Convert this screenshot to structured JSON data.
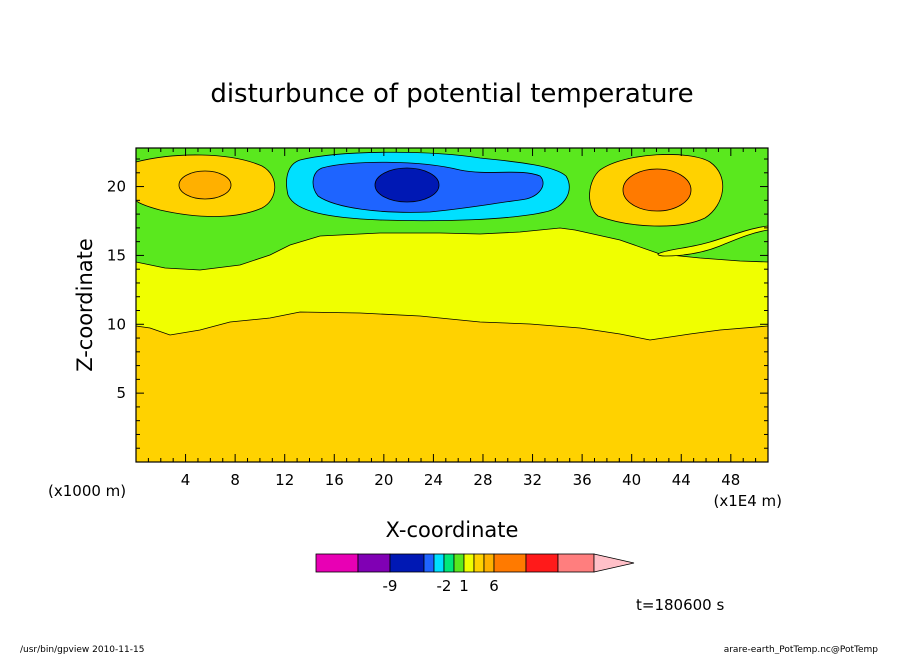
{
  "chart_data": {
    "type": "heatmap",
    "title": "disturbunce of potential temperature",
    "xlabel": "X-coordinate",
    "ylabel": "Z-coordinate",
    "x_unit_left": "(x1000 m)",
    "x_unit_right": "(x1E4 m)",
    "xlim": [
      0,
      51
    ],
    "ylim": [
      0,
      22.8
    ],
    "xticks": [
      4,
      8,
      12,
      16,
      20,
      24,
      28,
      32,
      36,
      40,
      44,
      48
    ],
    "yticks": [
      5,
      10,
      15,
      20
    ],
    "colorbar": {
      "colors": [
        "#e800b4",
        "#8000b4",
        "#0018b4",
        "#1e64ff",
        "#00e0ff",
        "#00e87a",
        "#5ae81e",
        "#f0ff00",
        "#ffd200",
        "#ffb000",
        "#ff7a00",
        "#ff1a1a",
        "#ff7e7e",
        "#ffc0c8"
      ],
      "tick_labels": [
        {
          "label": "-9",
          "after_box": 2
        },
        {
          "label": "-2",
          "after_box": 5
        },
        {
          "label": "1",
          "after_box": 7
        },
        {
          "label": "6",
          "after_box": 10
        }
      ]
    },
    "regions": [
      {
        "name": "base-orange",
        "color": "#ffd200",
        "level": "1 to 2"
      },
      {
        "name": "yellow-band",
        "color": "#f0ff00",
        "level": "0 to 1"
      },
      {
        "name": "green-band",
        "color": "#5ae81e",
        "level": "-1 to 0"
      },
      {
        "name": "left-warm-cell",
        "color": "#ffb000",
        "x": 5,
        "z": 20
      },
      {
        "name": "center-cold-cell",
        "color": "#0018b4",
        "x": 21.5,
        "z": 20
      },
      {
        "name": "right-warm-cell",
        "color": "#ff7a00",
        "x": 42,
        "z": 19.5
      }
    ]
  },
  "annotations": {
    "time_label": "t=180600 s",
    "footer_left": "/usr/bin/gpview  2010-11-15",
    "footer_right": "arare-earth_PotTemp.nc@PotTemp"
  }
}
